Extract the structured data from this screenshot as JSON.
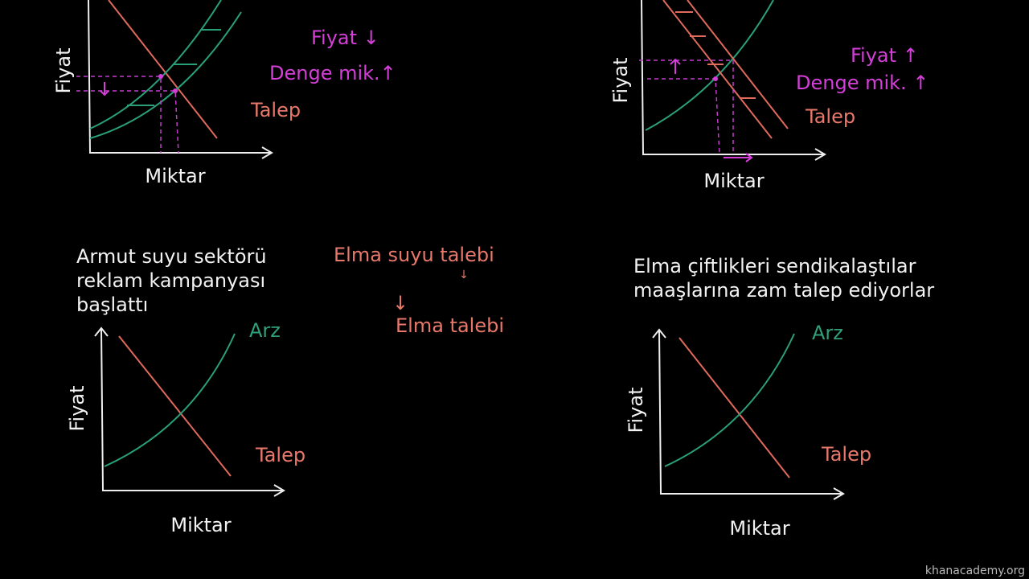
{
  "panels": [
    {
      "y_axis": "Fiyat",
      "x_axis": "Miktar",
      "demand": "Talep",
      "notes": [
        "Fiyat ↓",
        "Denge mik.↑"
      ]
    },
    {
      "y_axis": "Fiyat",
      "x_axis": "Miktar",
      "demand": "Talep",
      "notes": [
        "Fiyat ↑",
        "Denge mik. ↑"
      ]
    },
    {
      "caption": [
        "Armut suyu sektörü",
        "reklam kampanyası",
        "başlattı"
      ],
      "y_axis": "Fiyat",
      "x_axis": "Miktar",
      "supply": "Arz",
      "demand": "Talep",
      "notes": [
        "Elma suyu talebi",
        "↓",
        "↓",
        "Elma talebi"
      ]
    },
    {
      "caption": [
        "Elma çiftlikleri sendikalaştılar",
        "maaşlarına zam talep ediyorlar"
      ],
      "y_axis": "Fiyat",
      "x_axis": "Miktar",
      "supply": "Arz",
      "demand": "Talep"
    }
  ],
  "watermark": "khanacademy.org"
}
